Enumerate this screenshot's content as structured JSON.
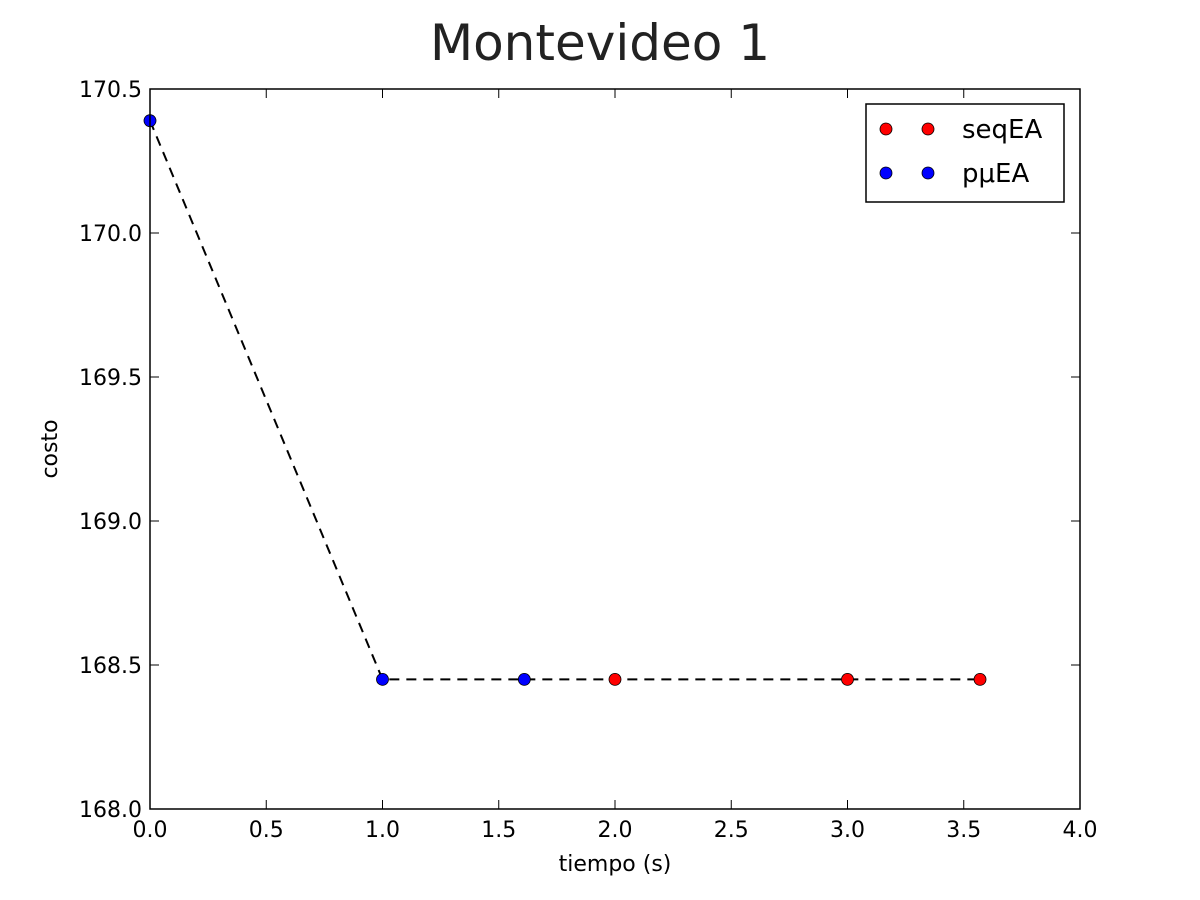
{
  "chart_data": {
    "type": "scatter",
    "title": "Montevideo 1",
    "xlabel": "tiempo (s)",
    "ylabel": "costo",
    "xlim": [
      0.0,
      4.0
    ],
    "ylim": [
      168.0,
      170.5
    ],
    "xticks": [
      0.0,
      0.5,
      1.0,
      1.5,
      2.0,
      2.5,
      3.0,
      3.5,
      4.0
    ],
    "yticks": [
      168.0,
      168.5,
      169.0,
      169.5,
      170.0,
      170.5
    ],
    "xtick_labels": [
      "0.0",
      "0.5",
      "1.0",
      "1.5",
      "2.0",
      "2.5",
      "3.0",
      "3.5",
      "4.0"
    ],
    "ytick_labels": [
      "168.0",
      "168.5",
      "169.0",
      "169.5",
      "170.0",
      "170.5"
    ],
    "grid": false,
    "legend_position": "top-right",
    "series": [
      {
        "name": "seqEA",
        "legend_label": "seqEA",
        "color": "#ff0000",
        "marker": "circle",
        "points": [
          {
            "x": 2.0,
            "y": 168.45
          },
          {
            "x": 3.0,
            "y": 168.45
          },
          {
            "x": 3.57,
            "y": 168.45
          }
        ]
      },
      {
        "name": "pμEA",
        "legend_label": "pμEA",
        "color": "#0000ff",
        "marker": "circle",
        "points": [
          {
            "x": 0.0,
            "y": 170.39
          },
          {
            "x": 1.0,
            "y": 168.45
          },
          {
            "x": 1.61,
            "y": 168.45
          }
        ]
      }
    ],
    "trend_line": {
      "style": "dashed",
      "color": "#000000",
      "points": [
        {
          "x": 0.0,
          "y": 170.39
        },
        {
          "x": 1.0,
          "y": 168.45
        },
        {
          "x": 3.57,
          "y": 168.45
        }
      ]
    }
  }
}
